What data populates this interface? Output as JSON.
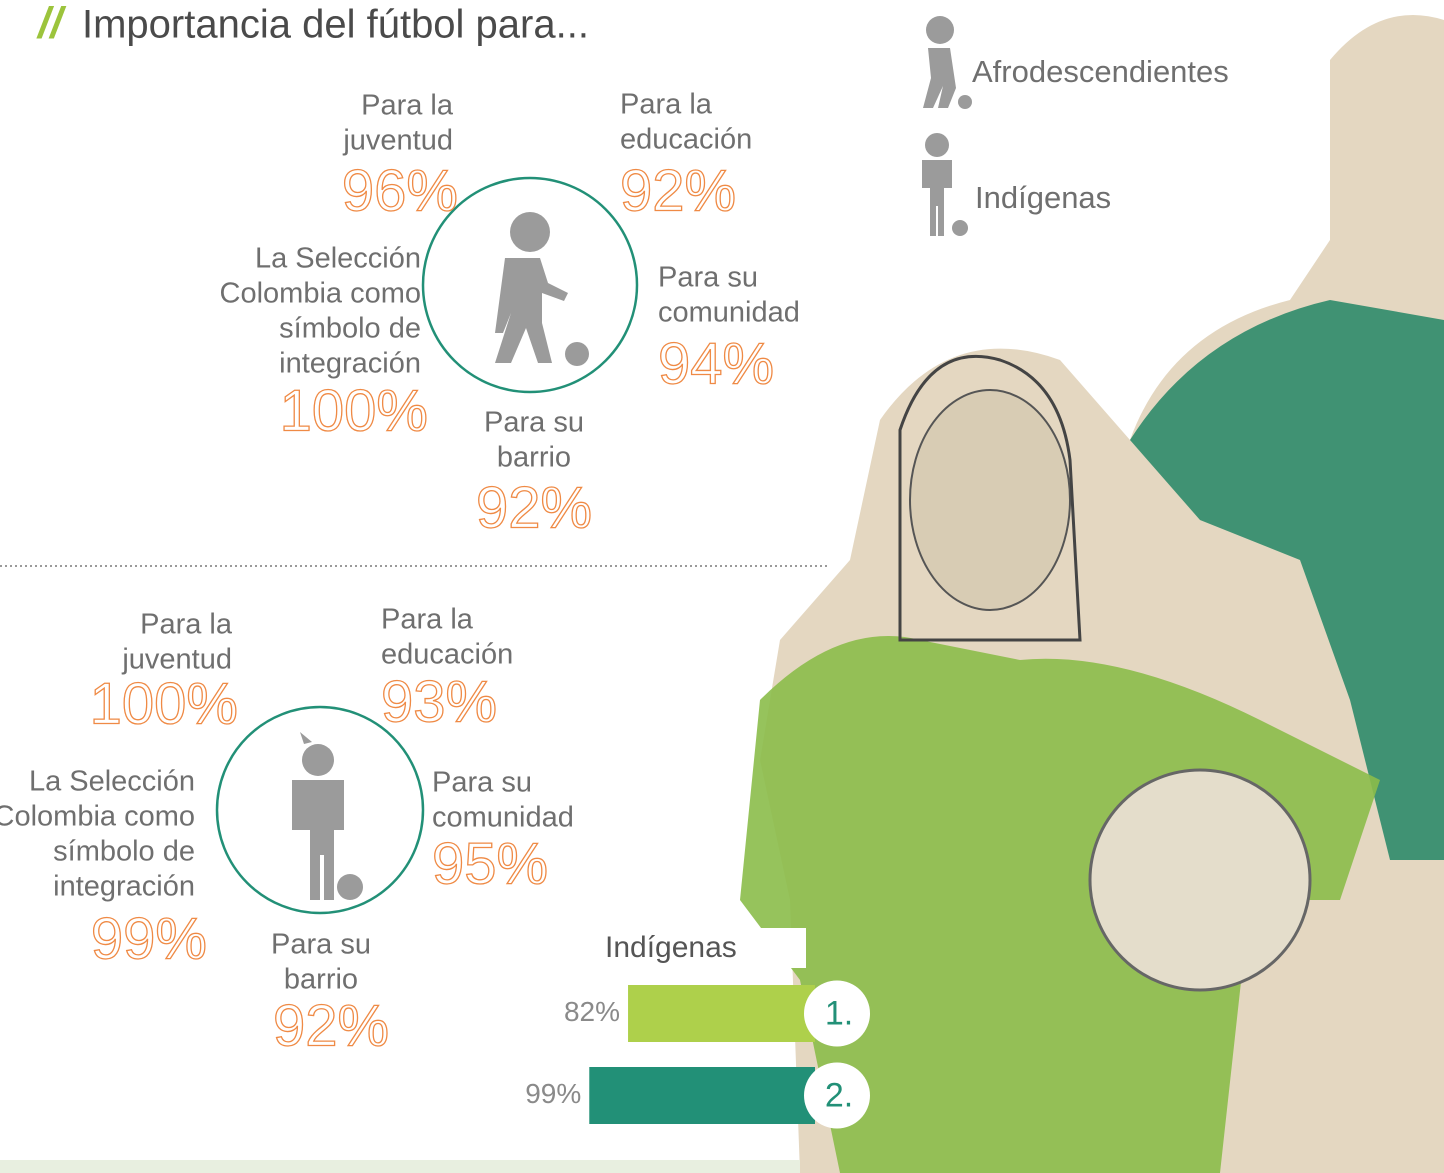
{
  "header": {
    "mark": "//",
    "title": "Importancia del fútbol para..."
  },
  "legend": [
    {
      "label": "Afrodescendientes"
    },
    {
      "label": "Indígenas"
    }
  ],
  "groups": [
    {
      "items": [
        {
          "label": [
            "Para la",
            "juventud"
          ],
          "value": "96%"
        },
        {
          "label": [
            "Para la",
            "educación"
          ],
          "value": "92%"
        },
        {
          "label": [
            "La Selección",
            "Colombia como",
            "símbolo de",
            "integración"
          ],
          "value": "100%"
        },
        {
          "label": [
            "Para su",
            "comunidad"
          ],
          "value": "94%"
        },
        {
          "label": [
            "Para su",
            "barrio"
          ],
          "value": "92%"
        }
      ]
    },
    {
      "items": [
        {
          "label": [
            "Para la",
            "juventud"
          ],
          "value": "100%"
        },
        {
          "label": [
            "Para la",
            "educación"
          ],
          "value": "93%"
        },
        {
          "label": [
            "La Selección",
            "Colombia como",
            "símbolo de",
            "integración"
          ],
          "value": "99%"
        },
        {
          "label": [
            "Para su",
            "comunidad"
          ],
          "value": "95%"
        },
        {
          "label": [
            "Para su",
            "barrio"
          ],
          "value": "92%"
        }
      ]
    }
  ],
  "chart_data": {
    "type": "bar",
    "title": "Indígenas",
    "categories": [
      "1.",
      "2."
    ],
    "values": [
      82,
      99
    ],
    "value_labels": [
      "82%",
      "99%"
    ],
    "colors": [
      "#aed04b",
      "#229077"
    ]
  }
}
